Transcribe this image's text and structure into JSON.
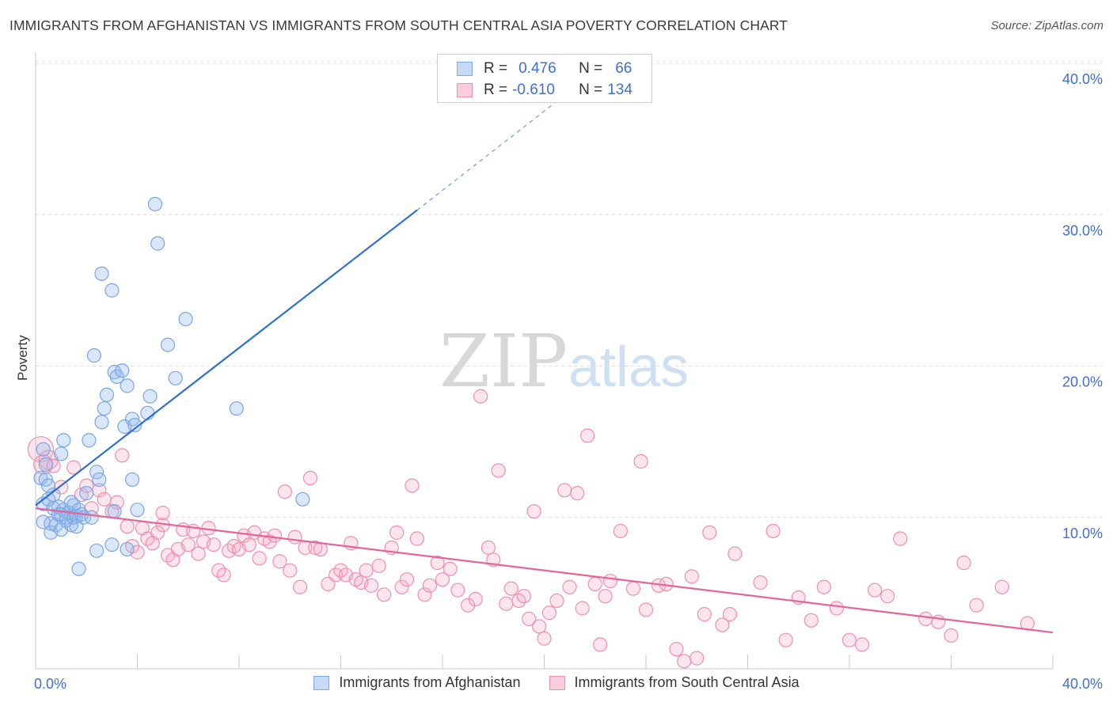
{
  "title": "IMMIGRANTS FROM AFGHANISTAN VS IMMIGRANTS FROM SOUTH CENTRAL ASIA POVERTY CORRELATION CHART",
  "source": "Source: ZipAtlas.com",
  "watermark": {
    "zip": "ZIP",
    "atlas": "atlas"
  },
  "legend": {
    "r_label": "R =",
    "n_label": "N =",
    "rows": [
      {
        "r": "0.476",
        "n": "66",
        "color": "#7fa8e6",
        "fill": "#c6d9f5"
      },
      {
        "r": "-0.610",
        "n": "134",
        "color": "#f08fb0",
        "fill": "#f9cedb"
      }
    ]
  },
  "colors": {
    "blue_point": "#7aa6e3",
    "blue_fill": "rgba(150,185,235,0.35)",
    "blue_line": "#2f6fd1",
    "pink_point": "#ee8fb0",
    "pink_fill": "rgba(245,170,195,0.30)",
    "pink_line": "#e2669a",
    "axis_text": "#3f6fd0",
    "grid": "#dddddd"
  },
  "chart_data": {
    "type": "scatter",
    "title": "IMMIGRANTS FROM AFGHANISTAN VS IMMIGRANTS FROM SOUTH CENTRAL ASIA POVERTY CORRELATION CHART",
    "xlabel": "",
    "ylabel": "Poverty",
    "xlim": [
      0,
      40
    ],
    "ylim": [
      0,
      40
    ],
    "x_tick_labels": [
      "0.0%",
      "40.0%"
    ],
    "y_ticks": [
      10,
      20,
      30,
      40
    ],
    "y_tick_labels": [
      "10.0%",
      "20.0%",
      "30.0%",
      "40.0%"
    ],
    "grid": "horizontal dashed",
    "legend_position": "bottom",
    "series": [
      {
        "name": "Immigrants from Afghanistan",
        "R": 0.476,
        "N": 66,
        "trend": {
          "x0": 0,
          "y0": 10.8,
          "x1": 15.0,
          "y1": 30.3,
          "dashed_to": {
            "x": 21.5,
            "y": 38.8
          }
        },
        "points": [
          [
            0.2,
            12.6
          ],
          [
            0.3,
            10.9
          ],
          [
            0.3,
            9.7
          ],
          [
            0.4,
            12.5
          ],
          [
            0.5,
            11.2
          ],
          [
            0.5,
            12.1
          ],
          [
            0.6,
            9.0
          ],
          [
            0.6,
            9.6
          ],
          [
            0.7,
            11.5
          ],
          [
            0.7,
            10.6
          ],
          [
            0.8,
            9.5
          ],
          [
            0.9,
            10.2
          ],
          [
            0.9,
            10.7
          ],
          [
            1.0,
            14.2
          ],
          [
            1.0,
            9.2
          ],
          [
            1.1,
            10.5
          ],
          [
            1.1,
            15.1
          ],
          [
            1.2,
            10.0
          ],
          [
            1.2,
            9.8
          ],
          [
            1.3,
            10.3
          ],
          [
            1.4,
            11.0
          ],
          [
            1.4,
            9.5
          ],
          [
            1.5,
            10.8
          ],
          [
            1.5,
            10.0
          ],
          [
            1.6,
            10.1
          ],
          [
            1.6,
            9.4
          ],
          [
            1.7,
            10.5
          ],
          [
            1.8,
            10.2
          ],
          [
            1.9,
            10.0
          ],
          [
            2.0,
            11.6
          ],
          [
            2.1,
            15.1
          ],
          [
            2.2,
            10.0
          ],
          [
            2.4,
            13.0
          ],
          [
            2.4,
            7.8
          ],
          [
            2.5,
            12.5
          ],
          [
            2.6,
            16.3
          ],
          [
            2.7,
            17.2
          ],
          [
            2.8,
            18.1
          ],
          [
            3.0,
            8.2
          ],
          [
            3.1,
            10.4
          ],
          [
            3.1,
            19.6
          ],
          [
            3.2,
            19.3
          ],
          [
            3.4,
            19.7
          ],
          [
            3.5,
            16.0
          ],
          [
            3.6,
            7.9
          ],
          [
            3.6,
            18.7
          ],
          [
            3.8,
            16.5
          ],
          [
            3.9,
            16.1
          ],
          [
            3.8,
            12.5
          ],
          [
            4.0,
            10.5
          ],
          [
            4.4,
            16.9
          ],
          [
            4.5,
            18.0
          ],
          [
            4.7,
            30.7
          ],
          [
            4.8,
            28.1
          ],
          [
            5.2,
            21.4
          ],
          [
            5.5,
            19.2
          ],
          [
            5.9,
            23.1
          ],
          [
            2.3,
            20.7
          ],
          [
            2.6,
            26.1
          ],
          [
            3.0,
            25.0
          ],
          [
            7.9,
            17.2
          ],
          [
            10.5,
            11.2
          ],
          [
            1.7,
            6.6
          ],
          [
            0.3,
            14.5
          ],
          [
            0.4,
            13.5
          ],
          [
            1.0,
            10.2
          ]
        ]
      },
      {
        "name": "Immigrants from South Central Asia",
        "R": -0.61,
        "N": 134,
        "trend": {
          "x0": 0,
          "y0": 10.6,
          "x1": 40,
          "y1": 2.4
        },
        "points": [
          [
            0.2,
            14.5
          ],
          [
            0.3,
            13.5
          ],
          [
            0.5,
            13.8
          ],
          [
            0.7,
            13.4
          ],
          [
            1.0,
            12.0
          ],
          [
            1.5,
            13.3
          ],
          [
            1.8,
            11.5
          ],
          [
            2.0,
            12.1
          ],
          [
            2.2,
            10.6
          ],
          [
            2.5,
            11.8
          ],
          [
            2.7,
            11.2
          ],
          [
            3.0,
            10.4
          ],
          [
            3.2,
            11.0
          ],
          [
            3.4,
            14.1
          ],
          [
            3.6,
            9.4
          ],
          [
            3.8,
            8.1
          ],
          [
            4.0,
            7.7
          ],
          [
            4.2,
            9.3
          ],
          [
            4.4,
            8.6
          ],
          [
            4.6,
            8.3
          ],
          [
            4.8,
            9.0
          ],
          [
            5.0,
            9.5
          ],
          [
            5.0,
            10.3
          ],
          [
            5.2,
            7.5
          ],
          [
            5.4,
            7.2
          ],
          [
            5.6,
            7.9
          ],
          [
            5.8,
            9.2
          ],
          [
            6.0,
            8.2
          ],
          [
            6.2,
            9.1
          ],
          [
            6.4,
            7.6
          ],
          [
            6.6,
            8.4
          ],
          [
            6.8,
            9.3
          ],
          [
            7.0,
            8.2
          ],
          [
            7.2,
            6.5
          ],
          [
            7.4,
            6.2
          ],
          [
            7.6,
            7.8
          ],
          [
            7.8,
            8.1
          ],
          [
            8.0,
            7.9
          ],
          [
            8.2,
            8.8
          ],
          [
            8.4,
            8.2
          ],
          [
            8.6,
            9.0
          ],
          [
            8.8,
            7.3
          ],
          [
            9.0,
            8.6
          ],
          [
            9.2,
            8.4
          ],
          [
            9.4,
            8.8
          ],
          [
            9.6,
            7.1
          ],
          [
            9.8,
            11.7
          ],
          [
            10.0,
            6.5
          ],
          [
            10.2,
            8.7
          ],
          [
            10.4,
            5.4
          ],
          [
            10.6,
            8.0
          ],
          [
            10.8,
            12.6
          ],
          [
            11.0,
            8.0
          ],
          [
            11.2,
            7.9
          ],
          [
            11.5,
            5.6
          ],
          [
            11.8,
            6.2
          ],
          [
            12.0,
            6.5
          ],
          [
            12.2,
            6.2
          ],
          [
            12.4,
            8.3
          ],
          [
            12.6,
            5.9
          ],
          [
            12.8,
            5.7
          ],
          [
            13.0,
            6.5
          ],
          [
            13.2,
            5.5
          ],
          [
            13.5,
            6.8
          ],
          [
            13.7,
            4.9
          ],
          [
            14.0,
            8.0
          ],
          [
            14.2,
            9.0
          ],
          [
            14.4,
            5.4
          ],
          [
            14.6,
            5.9
          ],
          [
            14.8,
            12.1
          ],
          [
            15.0,
            8.6
          ],
          [
            15.3,
            4.9
          ],
          [
            15.5,
            5.5
          ],
          [
            15.8,
            7.0
          ],
          [
            16.0,
            5.9
          ],
          [
            16.3,
            6.6
          ],
          [
            16.6,
            5.2
          ],
          [
            17.0,
            4.2
          ],
          [
            17.3,
            4.6
          ],
          [
            17.5,
            18.0
          ],
          [
            17.8,
            8.0
          ],
          [
            18.0,
            7.2
          ],
          [
            18.2,
            13.1
          ],
          [
            18.5,
            4.3
          ],
          [
            18.7,
            5.3
          ],
          [
            19.0,
            4.5
          ],
          [
            19.2,
            4.8
          ],
          [
            19.4,
            3.3
          ],
          [
            19.6,
            10.4
          ],
          [
            19.8,
            2.8
          ],
          [
            20.0,
            2.0
          ],
          [
            20.2,
            3.7
          ],
          [
            20.5,
            4.5
          ],
          [
            20.8,
            11.8
          ],
          [
            21.0,
            5.4
          ],
          [
            21.3,
            11.6
          ],
          [
            21.5,
            4.0
          ],
          [
            21.7,
            15.4
          ],
          [
            22.0,
            5.6
          ],
          [
            22.2,
            1.6
          ],
          [
            22.4,
            4.8
          ],
          [
            22.6,
            5.8
          ],
          [
            23.0,
            9.1
          ],
          [
            23.5,
            5.3
          ],
          [
            23.8,
            13.7
          ],
          [
            24.0,
            3.9
          ],
          [
            24.5,
            5.5
          ],
          [
            24.8,
            5.6
          ],
          [
            25.2,
            1.3
          ],
          [
            25.5,
            0.5
          ],
          [
            25.8,
            6.1
          ],
          [
            26.0,
            0.7
          ],
          [
            26.3,
            3.6
          ],
          [
            26.5,
            9.0
          ],
          [
            27.0,
            2.9
          ],
          [
            27.3,
            3.6
          ],
          [
            27.5,
            7.6
          ],
          [
            28.5,
            5.7
          ],
          [
            29.0,
            9.1
          ],
          [
            29.5,
            1.9
          ],
          [
            30.0,
            4.7
          ],
          [
            30.5,
            3.2
          ],
          [
            31.0,
            5.4
          ],
          [
            31.5,
            4.0
          ],
          [
            32.0,
            1.9
          ],
          [
            32.5,
            1.6
          ],
          [
            33.0,
            5.2
          ],
          [
            33.5,
            4.8
          ],
          [
            34.0,
            8.6
          ],
          [
            35.0,
            3.3
          ],
          [
            35.5,
            3.1
          ],
          [
            36.0,
            2.2
          ],
          [
            36.5,
            7.0
          ],
          [
            37.0,
            4.2
          ],
          [
            38.0,
            5.4
          ],
          [
            39.0,
            3.0
          ]
        ]
      }
    ]
  },
  "bottom_legend": [
    {
      "label": "Immigrants from Afghanistan"
    },
    {
      "label": "Immigrants from South Central Asia"
    }
  ]
}
